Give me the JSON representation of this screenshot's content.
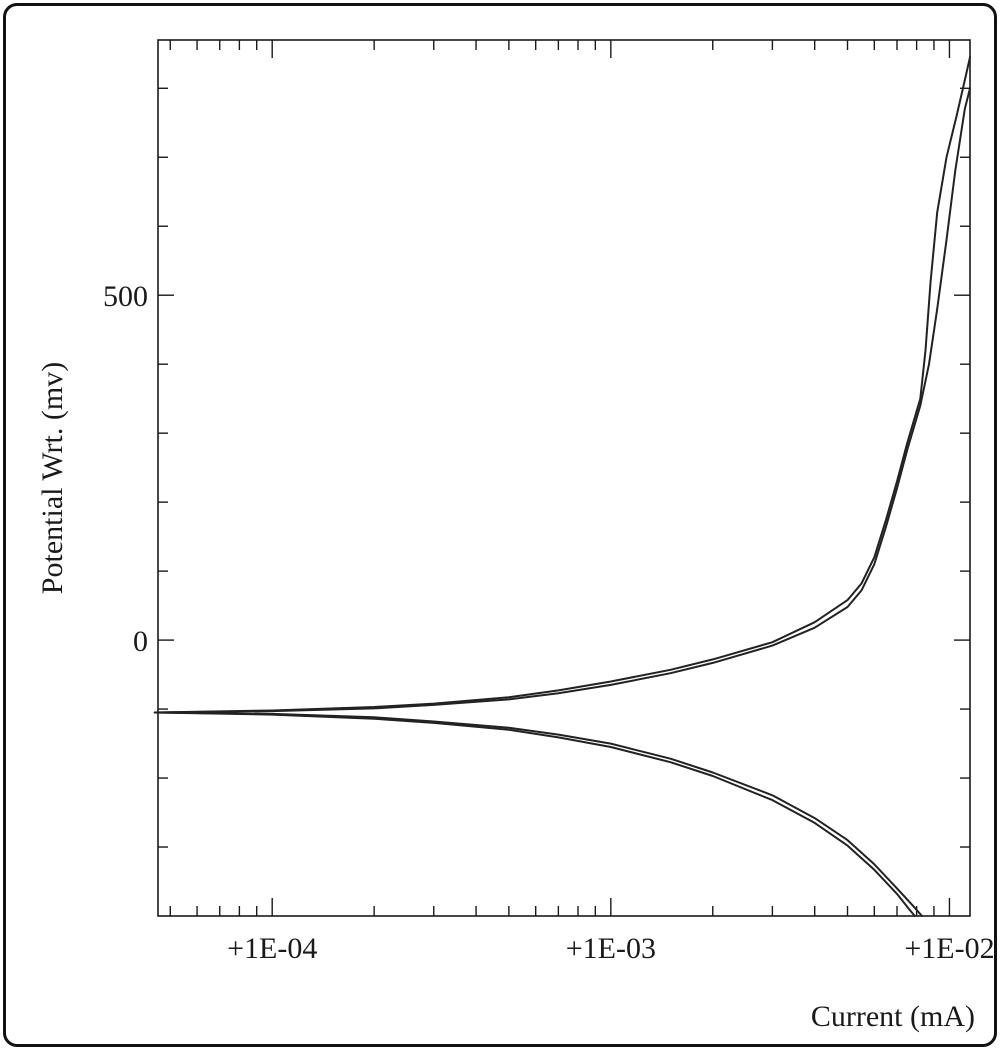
{
  "chart_data": {
    "type": "line",
    "title": "",
    "xlabel": "Current (mA)",
    "ylabel": "Potential Wrt. (mv)",
    "x_scale": "log",
    "xlim": [
      4.6e-05,
      0.0115
    ],
    "ylim": [
      -400,
      870
    ],
    "x_ticks": [
      {
        "value": 0.0001,
        "label": "+1E-04"
      },
      {
        "value": 0.001,
        "label": "+1E-03"
      },
      {
        "value": 0.01,
        "label": "+1E-02"
      }
    ],
    "y_ticks": [
      {
        "value": 0,
        "label": "0"
      },
      {
        "value": 500,
        "label": "500"
      }
    ],
    "grid": false,
    "series": [
      {
        "points": [
          [
            4.5e-05,
            -105
          ],
          [
            0.0001,
            -102
          ],
          [
            0.0002,
            -97
          ],
          [
            0.0003,
            -92
          ],
          [
            0.0005,
            -83
          ],
          [
            0.0007,
            -73
          ],
          [
            0.001,
            -60
          ],
          [
            0.0015,
            -43
          ],
          [
            0.002,
            -28
          ],
          [
            0.003,
            -3
          ],
          [
            0.004,
            26
          ],
          [
            0.005,
            58
          ],
          [
            0.0055,
            82
          ],
          [
            0.006,
            120
          ],
          [
            0.0065,
            175
          ],
          [
            0.007,
            230
          ],
          [
            0.0075,
            285
          ],
          [
            0.0082,
            350
          ],
          [
            0.0085,
            420
          ],
          [
            0.0088,
            520
          ],
          [
            0.0092,
            620
          ],
          [
            0.0098,
            700
          ],
          [
            0.0105,
            760
          ],
          [
            0.0112,
            820
          ],
          [
            0.0115,
            845
          ]
        ]
      },
      {
        "points": [
          [
            4.5e-05,
            -105
          ],
          [
            0.0001,
            -103
          ],
          [
            0.0002,
            -99
          ],
          [
            0.0003,
            -94
          ],
          [
            0.0005,
            -86
          ],
          [
            0.0007,
            -77
          ],
          [
            0.001,
            -65
          ],
          [
            0.0015,
            -48
          ],
          [
            0.002,
            -33
          ],
          [
            0.003,
            -8
          ],
          [
            0.004,
            18
          ],
          [
            0.005,
            48
          ],
          [
            0.0055,
            72
          ],
          [
            0.006,
            110
          ],
          [
            0.0065,
            165
          ],
          [
            0.007,
            220
          ],
          [
            0.0075,
            275
          ],
          [
            0.0082,
            340
          ],
          [
            0.0087,
            400
          ],
          [
            0.0092,
            480
          ],
          [
            0.0098,
            580
          ],
          [
            0.0104,
            680
          ],
          [
            0.0111,
            770
          ],
          [
            0.0115,
            800
          ]
        ]
      },
      {
        "points": [
          [
            4.5e-05,
            -105
          ],
          [
            0.0001,
            -107
          ],
          [
            0.0002,
            -112
          ],
          [
            0.0003,
            -118
          ],
          [
            0.0005,
            -127
          ],
          [
            0.0007,
            -137
          ],
          [
            0.001,
            -150
          ],
          [
            0.0015,
            -172
          ],
          [
            0.002,
            -192
          ],
          [
            0.003,
            -225
          ],
          [
            0.004,
            -258
          ],
          [
            0.005,
            -290
          ],
          [
            0.006,
            -325
          ],
          [
            0.007,
            -360
          ],
          [
            0.0078,
            -385
          ],
          [
            0.0083,
            -400
          ]
        ]
      },
      {
        "points": [
          [
            4.5e-05,
            -105
          ],
          [
            0.0001,
            -108
          ],
          [
            0.0002,
            -114
          ],
          [
            0.0003,
            -120
          ],
          [
            0.0005,
            -130
          ],
          [
            0.0007,
            -141
          ],
          [
            0.001,
            -155
          ],
          [
            0.0015,
            -177
          ],
          [
            0.002,
            -197
          ],
          [
            0.003,
            -232
          ],
          [
            0.004,
            -265
          ],
          [
            0.005,
            -298
          ],
          [
            0.006,
            -333
          ],
          [
            0.007,
            -368
          ],
          [
            0.0076,
            -390
          ],
          [
            0.0079,
            -400
          ]
        ]
      }
    ]
  }
}
